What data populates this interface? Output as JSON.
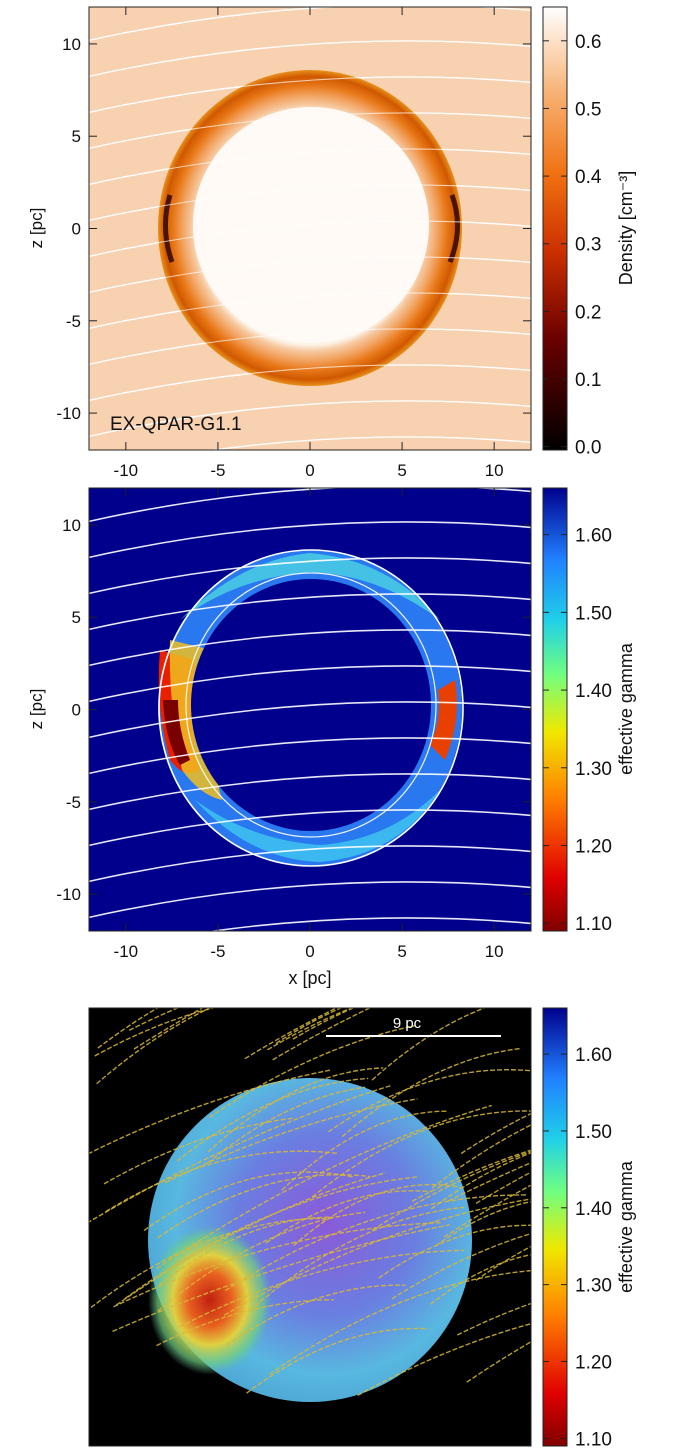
{
  "figure": {
    "panels": [
      {
        "id": "density",
        "annotation": "EX-QPAR-G1.1",
        "xlabel": "",
        "ylabel": "z [pc]",
        "xticks": [
          "-10",
          "-5",
          "0",
          "5",
          "10"
        ],
        "yticks": [
          "10",
          "5",
          "0",
          "-5",
          "-10"
        ],
        "colorbar": {
          "label": "Density [cm⁻³]",
          "ticks": [
            "0.6",
            "0.5",
            "0.4",
            "0.3",
            "0.2",
            "0.1",
            "0.0"
          ]
        }
      },
      {
        "id": "gamma-slice",
        "xlabel": "x [pc]",
        "ylabel": "z [pc]",
        "xticks": [
          "-10",
          "-5",
          "0",
          "5",
          "10"
        ],
        "yticks": [
          "10",
          "5",
          "0",
          "-5",
          "-10"
        ],
        "colorbar": {
          "label": "effective gamma",
          "ticks": [
            "1.60",
            "1.50",
            "1.40",
            "1.30",
            "1.20",
            "1.10"
          ]
        }
      },
      {
        "id": "gamma-3d",
        "scalebar": "9 pc",
        "colorbar": {
          "label": "effective gamma",
          "ticks": [
            "1.60",
            "1.50",
            "1.40",
            "1.30",
            "1.20",
            "1.10"
          ]
        }
      }
    ]
  },
  "chart_data": [
    {
      "type": "heatmap",
      "title": "",
      "xlabel": "",
      "ylabel": "z [pc]",
      "xlim": [
        -12,
        12
      ],
      "ylim": [
        -12,
        12
      ],
      "color_quantity": "Density [cm⁻³]",
      "color_range": [
        0.0,
        0.65
      ],
      "colormap": "hot (black-red-orange-white)",
      "annotation": "EX-QPAR-G1.1",
      "features": {
        "shell_outer_radius_pc": 8.2,
        "interior_radius_pc": 6.2,
        "background_density": 0.55
      }
    },
    {
      "type": "heatmap",
      "title": "",
      "xlabel": "x [pc]",
      "ylabel": "z [pc]",
      "xlim": [
        -12,
        12
      ],
      "ylim": [
        -12,
        12
      ],
      "color_quantity": "effective gamma",
      "color_range": [
        1.1,
        1.66
      ],
      "colormap": "jet (dark red to dark blue)",
      "features": {
        "shell_outer_radius_pc": 8.2,
        "interior_radius_pc": 6.2
      }
    },
    {
      "type": "heatmap",
      "title": "",
      "color_quantity": "effective gamma",
      "color_range": [
        1.1,
        1.66
      ],
      "colormap": "jet (dark red to dark blue)",
      "scalebar": "9 pc",
      "features": {
        "view": "3D volume rendering with magnetic field lines"
      }
    }
  ],
  "colors": {
    "field_lines_slice": "#ffffff",
    "field_lines_3d": "#d8b838",
    "background_3d": "#000000",
    "density_background": "#f8d1b0"
  }
}
